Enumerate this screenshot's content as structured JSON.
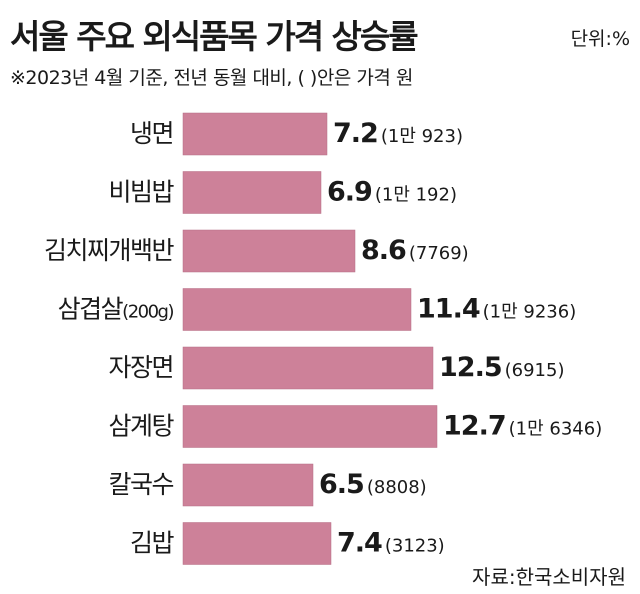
{
  "header": {
    "title": "서울 주요 외식품목 가격 상승률",
    "unit": "단위:%",
    "subtitle": "※2023년 4월 기준, 전년 동월 대비, (  )안은 가격 원"
  },
  "footer": {
    "source": "자료:한국소비자원"
  },
  "colors": {
    "bar": "#cd8199",
    "bar_edge": "#b56e85",
    "text": "#1a1a1a"
  },
  "chart_data": {
    "type": "bar",
    "orientation": "horizontal",
    "categories": [
      "냉면",
      "비빔밥",
      "김치찌개백반",
      "삼겹살(200g)",
      "자장면",
      "삼계탕",
      "칼국수",
      "김밥"
    ],
    "values": [
      7.2,
      6.9,
      8.6,
      11.4,
      12.5,
      12.7,
      6.5,
      7.4
    ],
    "value_labels": [
      "7.2",
      "6.9",
      "8.6",
      "11.4",
      "12.5",
      "12.7",
      "6.5",
      "7.4"
    ],
    "price_labels": [
      "(1만 923)",
      "(1만 192)",
      "(7769)",
      "(1만 9236)",
      "(6915)",
      "(1만 6346)",
      "(8808)",
      "(3123)"
    ],
    "title": "서울 주요 외식품목 가격 상승률",
    "xlabel": "",
    "ylabel": "",
    "xlim": [
      0,
      12.7
    ],
    "grid": false,
    "legend": "none"
  }
}
